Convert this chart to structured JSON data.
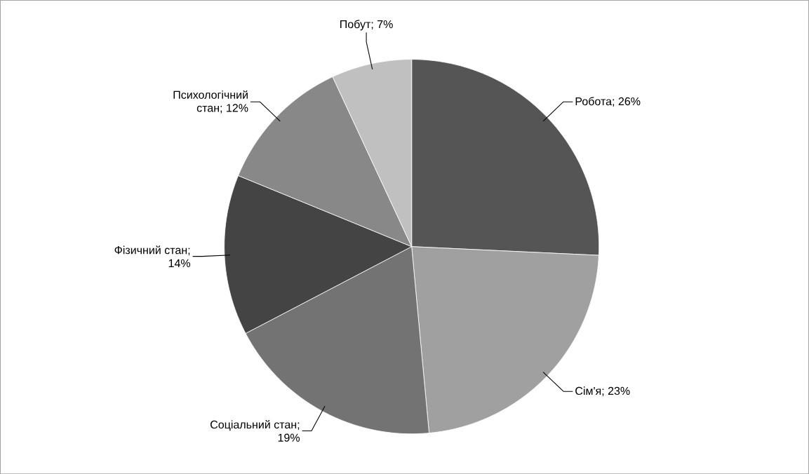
{
  "chart_data": {
    "type": "pie",
    "categories": [
      "Робота",
      "Сім'я",
      "Соціальний стан",
      "Фізичний стан",
      "Психологічний стан",
      "Побут"
    ],
    "values": [
      26,
      23,
      19,
      14,
      12,
      7
    ],
    "colors": [
      "#555555",
      "#a0a0a0",
      "#737373",
      "#444444",
      "#888888",
      "#c0c0c0"
    ],
    "value_labels": [
      "; 26%",
      "; 23%",
      "; 19%",
      "; 14%",
      "; 12%",
      "; 7%"
    ]
  }
}
